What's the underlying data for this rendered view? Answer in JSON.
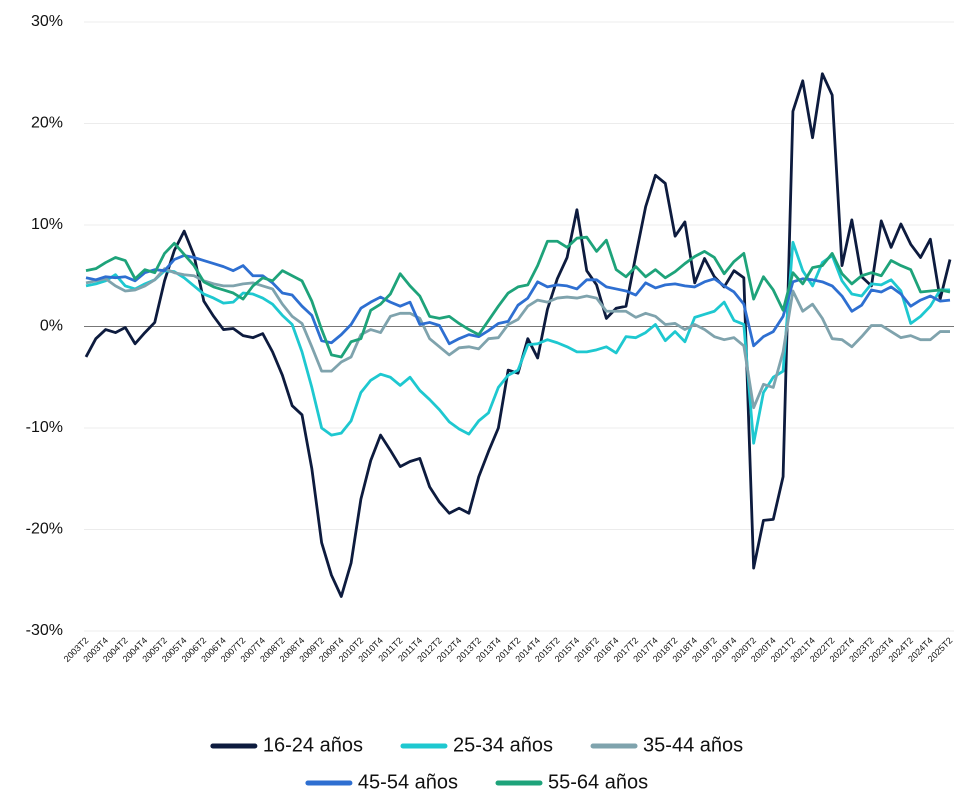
{
  "chart_data": {
    "type": "line",
    "categories": [
      "2003T2",
      null,
      "2003T4",
      null,
      "2004T2",
      null,
      "2004T4",
      null,
      "2005T2",
      null,
      "2005T4",
      null,
      "2006T2",
      null,
      "2006T4",
      null,
      "2007T2",
      null,
      "2007T4",
      null,
      "2008T2",
      null,
      "2008T4",
      null,
      "2009T2",
      null,
      "2009T4",
      null,
      "2010T2",
      null,
      "2010T4",
      null,
      "2011T2",
      null,
      "2011T4",
      null,
      "2012T2",
      null,
      "2012T4",
      null,
      "2013T2",
      null,
      "2013T4",
      null,
      "2014T2",
      null,
      "2014T4",
      null,
      "2015T2",
      null,
      "2015T4",
      null,
      "2016T2",
      null,
      "2016T4",
      null,
      "2017T2",
      null,
      "2017T4",
      null,
      "2018T2",
      null,
      "2018T4",
      null,
      "2019T2",
      null,
      "2019T4",
      null,
      "2020T2",
      null,
      "2020T4",
      null,
      "2021T2",
      null,
      "2021T4",
      null,
      "2022T2",
      null,
      "2022T4",
      null,
      "2023T2",
      null,
      "2023T4",
      null,
      "2024T2",
      null,
      "2024T4",
      null,
      "2025T2"
    ],
    "series": [
      {
        "name": "16-24 años",
        "color": "#0d1b3e",
        "values": [
          -3,
          -1.2,
          -0.3,
          -0.6,
          -0.1,
          -1.7,
          -0.6,
          0.4,
          4.5,
          7.5,
          9.4,
          7.0,
          2.5,
          1.0,
          -0.3,
          -0.2,
          -0.9,
          -1.1,
          -0.7,
          -2.5,
          -4.8,
          -7.8,
          -8.7,
          -14,
          -21.3,
          -24.5,
          -26.6,
          -23.3,
          -17,
          -13.2,
          -10.7,
          -12.2,
          -13.8,
          -13.3,
          -13,
          -15.8,
          -17.3,
          -18.4,
          -17.9,
          -18.4,
          -14.8,
          -12.3,
          -10,
          -4.3,
          -4.6,
          -1.2,
          -3.1,
          1.7,
          4.7,
          6.8,
          11.5,
          5.5,
          4.1,
          0.8,
          1.8,
          2,
          7,
          11.8,
          14.9,
          14.1,
          8.9,
          10.3,
          4.3,
          6.7,
          4.9,
          3.9,
          5.5,
          4.8,
          -23.8,
          -19.1,
          -19,
          -14.8,
          21.2,
          24.2,
          18.6,
          24.9,
          22.8,
          6,
          10.5,
          4.9,
          4,
          10.4,
          7.8,
          10.1,
          8.1,
          6.8,
          8.6,
          2.7,
          6.6
        ]
      },
      {
        "name": "25-34 años",
        "color": "#1ec8d0",
        "values": [
          4,
          4.2,
          4.5,
          5.1,
          4,
          3.7,
          4.2,
          4.6,
          5.5,
          5.4,
          4.8,
          4,
          3.2,
          2.8,
          2.3,
          2.4,
          3.3,
          3.2,
          2.8,
          2.2,
          1.1,
          0.2,
          -2.5,
          -6,
          -10,
          -10.7,
          -10.5,
          -9.3,
          -6.5,
          -5.3,
          -4.7,
          -5,
          -5.8,
          -5,
          -6.3,
          -7.2,
          -8.2,
          -9.4,
          -10.1,
          -10.6,
          -9.3,
          -8.5,
          -6,
          -4.8,
          -4.3,
          -1.8,
          -1.7,
          -1.3,
          -1.6,
          -2,
          -2.5,
          -2.5,
          -2.3,
          -2,
          -2.6,
          -1,
          -1.1,
          -0.6,
          0.2,
          -1.4,
          -0.5,
          -1.5,
          0.9,
          1.2,
          1.5,
          2.4,
          0.6,
          0.2,
          -11.5,
          -6.5,
          -5,
          -4.4,
          8.3,
          5.5,
          4,
          6.3,
          7,
          4.5,
          3.2,
          3,
          4.2,
          4.1,
          4.6,
          3.5,
          0.3,
          1,
          2,
          3.6,
          3.6
        ]
      },
      {
        "name": "35-44 años",
        "color": "#7fa3ad",
        "values": [
          4.3,
          4.5,
          4.7,
          4,
          3.5,
          3.6,
          4,
          4.6,
          5.7,
          5.3,
          5.1,
          5,
          4.5,
          4.2,
          4,
          4,
          4.2,
          4.3,
          4,
          3.7,
          2.2,
          1,
          0.3,
          -2,
          -4.4,
          -4.4,
          -3.5,
          -3,
          -0.8,
          -0.3,
          -0.6,
          1,
          1.3,
          1.3,
          0.8,
          -1.2,
          -2,
          -2.8,
          -2.1,
          -2,
          -2.2,
          -1.2,
          -1.1,
          0.2,
          0.7,
          2,
          2.6,
          2.4,
          2.8,
          2.9,
          2.8,
          3,
          2.8,
          1.5,
          1.5,
          1.5,
          0.9,
          1.3,
          1,
          0.2,
          0.3,
          -0.3,
          0.2,
          -0.3,
          -1,
          -1.3,
          -1.1,
          -1.9,
          -8,
          -5.7,
          -6,
          -2.5,
          3.5,
          1.5,
          2.2,
          0.8,
          -1.2,
          -1.3,
          -2,
          -1,
          0.1,
          0.1,
          -0.5,
          -1.1,
          -0.9,
          -1.3,
          -1.3,
          -0.5,
          -0.5
        ]
      },
      {
        "name": "45-54 años",
        "color": "#2e6fd1",
        "values": [
          4.8,
          4.6,
          4.9,
          4.8,
          4.9,
          4.5,
          5.3,
          5.6,
          5.5,
          6.6,
          7,
          6.8,
          6.5,
          6.2,
          5.9,
          5.5,
          6,
          5,
          5,
          4.3,
          3.3,
          3.1,
          2,
          1.1,
          -1.4,
          -1.6,
          -0.8,
          0.2,
          1.8,
          2.4,
          2.9,
          2.4,
          2,
          2.4,
          0.2,
          0.4,
          0.1,
          -1.7,
          -1.2,
          -0.8,
          -1,
          -0.4,
          0.3,
          0.5,
          2.1,
          2.8,
          4.4,
          3.9,
          4.1,
          4,
          3.7,
          4.6,
          4.6,
          3.9,
          3.7,
          3.5,
          3.1,
          4.3,
          3.8,
          4.1,
          4.2,
          4,
          3.9,
          4.4,
          4.7,
          4,
          3.4,
          2.2,
          -1.9,
          -1,
          -0.5,
          1,
          4.4,
          4.7,
          4.6,
          4.4,
          4,
          3,
          1.5,
          2.1,
          3.6,
          3.4,
          3.9,
          3.2,
          2,
          2.6,
          3,
          2.5,
          2.6
        ]
      },
      {
        "name": "55-64 años",
        "color": "#1ea37a",
        "values": [
          5.5,
          5.7,
          6.3,
          6.8,
          6.5,
          4.7,
          5.6,
          5.3,
          7.2,
          8.2,
          7.1,
          6,
          4.4,
          3.9,
          3.6,
          3.3,
          2.7,
          4,
          4.8,
          4.5,
          5.5,
          5,
          4.5,
          2.5,
          -0.3,
          -2.8,
          -3,
          -1.5,
          -1.2,
          1.6,
          2.2,
          3.2,
          5.2,
          4,
          3,
          1,
          0.8,
          1,
          0.3,
          -0.3,
          -0.8,
          0.6,
          2,
          3.3,
          3.9,
          4.1,
          6,
          8.4,
          8.4,
          7.8,
          8.7,
          8.8,
          7.4,
          8.5,
          5.6,
          4.9,
          5.9,
          4.9,
          5.6,
          4.8,
          5.4,
          6.2,
          6.9,
          7.4,
          6.8,
          5.2,
          6.4,
          7.2,
          2.7,
          4.9,
          3.6,
          1.6,
          5.3,
          4.2,
          5.8,
          6,
          7.2,
          5.2,
          4.2,
          5,
          5.3,
          5,
          6.5,
          6,
          5.6,
          3.4,
          3.5,
          3.6,
          3.4
        ]
      }
    ],
    "ylim": [
      -30,
      30
    ],
    "yticks": [
      {
        "value": -30,
        "label": "-30%"
      },
      {
        "value": -20,
        "label": "-20%"
      },
      {
        "value": -10,
        "label": "-10%"
      },
      {
        "value": 0,
        "label": "0%"
      },
      {
        "value": 10,
        "label": "10%"
      },
      {
        "value": 20,
        "label": "20%"
      },
      {
        "value": 30,
        "label": "30%"
      }
    ],
    "grid": true,
    "legend": "bottom"
  }
}
